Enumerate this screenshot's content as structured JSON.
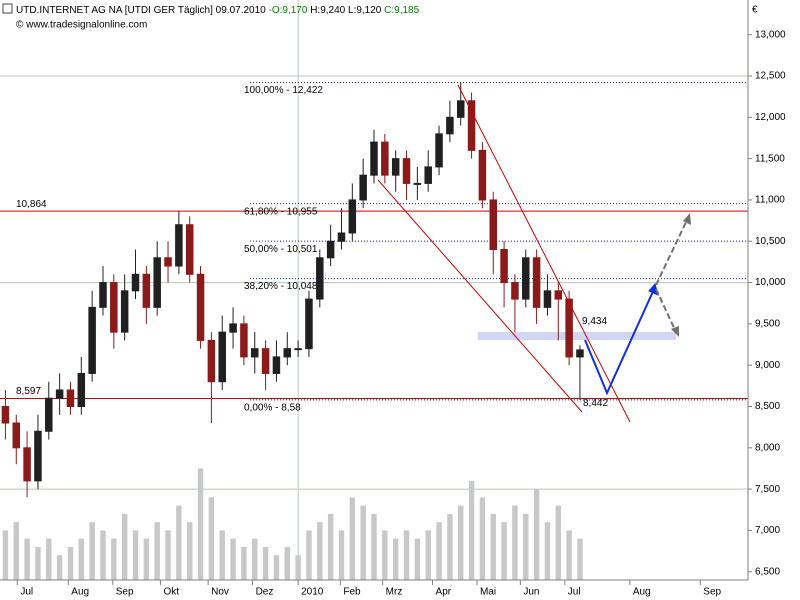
{
  "chart_data": {
    "type": "candlestick",
    "title": "UTD.INTERNET AG NA [UTDI GER  Täglich] 09.07.2010",
    "quote": [
      "-O:9,170",
      "H:9,240 L:9,120",
      "C:9,185"
    ],
    "subtitle": "© www.tradesignalonline.com",
    "currency": "€",
    "categories": [
      null,
      null,
      null,
      null,
      null,
      null,
      null,
      null,
      null,
      null,
      null,
      null,
      null,
      null,
      null,
      null,
      null,
      null,
      null,
      null,
      null,
      null,
      null,
      null,
      null,
      null,
      null,
      null,
      null,
      null,
      null,
      null,
      null,
      null,
      null,
      null,
      null,
      null,
      null,
      null,
      null,
      null,
      null,
      null,
      null,
      null,
      null,
      null,
      null,
      null,
      null,
      null,
      null,
      null
    ],
    "open": [
      8.5,
      8.3,
      8.0,
      7.6,
      8.2,
      8.6,
      8.7,
      8.5,
      8.9,
      9.7,
      10.0,
      9.4,
      9.9,
      10.1,
      9.7,
      10.3,
      10.2,
      10.7,
      10.1,
      9.3,
      8.8,
      9.4,
      9.5,
      9.1,
      9.2,
      8.9,
      9.1,
      9.2,
      9.2,
      9.8,
      10.3,
      10.5,
      10.6,
      11.0,
      11.3,
      11.7,
      11.3,
      11.5,
      11.2,
      11.2,
      11.4,
      11.8,
      12.0,
      12.2,
      11.6,
      11.0,
      10.4,
      10.0,
      9.8,
      10.3,
      9.7,
      9.9,
      9.8,
      9.1
    ],
    "high": [
      8.7,
      8.4,
      8.2,
      8.4,
      8.8,
      8.9,
      8.8,
      9.1,
      9.9,
      10.2,
      10.1,
      10.1,
      10.4,
      10.2,
      10.5,
      10.5,
      10.86,
      10.8,
      10.2,
      9.4,
      9.6,
      9.7,
      9.6,
      9.4,
      9.3,
      9.3,
      9.4,
      9.3,
      9.9,
      10.4,
      10.7,
      10.9,
      11.2,
      11.5,
      11.85,
      11.8,
      11.6,
      11.6,
      11.4,
      11.6,
      11.9,
      12.2,
      12.42,
      12.3,
      11.7,
      11.1,
      10.5,
      10.1,
      10.4,
      10.4,
      10.1,
      10.0,
      9.9,
      9.24
    ],
    "low": [
      8.1,
      7.8,
      7.4,
      7.5,
      8.1,
      8.4,
      8.4,
      8.4,
      8.8,
      9.6,
      9.2,
      9.3,
      9.8,
      9.5,
      9.6,
      10.0,
      10.1,
      10.0,
      9.2,
      8.3,
      8.7,
      9.2,
      9.0,
      8.9,
      8.7,
      8.8,
      9.0,
      9.1,
      9.1,
      9.7,
      10.2,
      10.4,
      10.5,
      10.9,
      11.2,
      11.2,
      11.1,
      11.0,
      11.0,
      11.1,
      11.3,
      11.7,
      11.9,
      11.5,
      10.9,
      10.1,
      9.7,
      9.4,
      9.7,
      9.5,
      9.6,
      9.3,
      9.0,
      8.58
    ],
    "close": [
      8.3,
      8.0,
      7.6,
      8.2,
      8.6,
      8.7,
      8.5,
      8.9,
      9.7,
      10.0,
      9.4,
      9.9,
      10.1,
      9.7,
      10.3,
      10.2,
      10.7,
      10.1,
      9.3,
      8.8,
      9.4,
      9.5,
      9.1,
      9.2,
      8.9,
      9.1,
      9.2,
      9.2,
      9.8,
      10.3,
      10.5,
      10.6,
      11.0,
      11.3,
      11.7,
      11.3,
      11.5,
      11.2,
      11.2,
      11.4,
      11.8,
      12.0,
      12.2,
      11.6,
      11.0,
      10.4,
      10.0,
      9.8,
      10.3,
      9.7,
      9.9,
      9.8,
      9.1,
      9.185
    ],
    "volume": [
      7.0,
      7.1,
      6.9,
      6.8,
      6.9,
      6.7,
      6.8,
      6.9,
      7.1,
      7.0,
      6.9,
      7.2,
      7.0,
      6.9,
      7.1,
      7.0,
      7.3,
      7.1,
      7.75,
      7.4,
      7.0,
      6.9,
      6.8,
      6.9,
      6.8,
      6.7,
      6.8,
      6.7,
      7.0,
      7.1,
      7.2,
      7.0,
      7.4,
      7.3,
      7.2,
      7.0,
      6.9,
      7.0,
      6.9,
      7.0,
      7.1,
      7.2,
      7.3,
      7.6,
      7.4,
      7.2,
      7.1,
      7.3,
      7.2,
      7.5,
      7.1,
      7.3,
      7.0,
      6.9
    ],
    "up_color": "#202020",
    "down_color": "#8b1a1a",
    "volume_color": "#c8c8c8",
    "xlim": [
      0,
      69
    ],
    "xticks": [
      {
        "value": 1.6,
        "label": "Jul"
      },
      {
        "value": 6.3,
        "label": "Aug"
      },
      {
        "value": 10.4,
        "label": "Sep"
      },
      {
        "value": 14.8,
        "label": "Okt"
      },
      {
        "value": 19.2,
        "label": "Nov"
      },
      {
        "value": 23.3,
        "label": "Dez"
      },
      {
        "value": 27.5,
        "label": "2010"
      },
      {
        "value": 31.4,
        "label": "Feb"
      },
      {
        "value": 35.3,
        "label": "Mrz"
      },
      {
        "value": 39.9,
        "label": "Apr"
      },
      {
        "value": 44.0,
        "label": "Mai"
      },
      {
        "value": 48.0,
        "label": "Jun"
      },
      {
        "value": 52.1,
        "label": "Jul"
      },
      {
        "value": 58.1,
        "label": "Aug"
      },
      {
        "value": 64.6,
        "label": "Sep"
      }
    ],
    "ylim": [
      6.4,
      13.42
    ],
    "yticks": [
      {
        "value": 6.5,
        "label": "6,500"
      },
      {
        "value": 7,
        "label": "7,000"
      },
      {
        "value": 7.5,
        "label": "7,500"
      },
      {
        "value": 8,
        "label": "8,000"
      },
      {
        "value": 8.5,
        "label": "8,500"
      },
      {
        "value": 9,
        "label": "9,000"
      },
      {
        "value": 9.5,
        "label": "9,500"
      },
      {
        "value": 10,
        "label": "10,000"
      },
      {
        "value": 10.5,
        "label": "10,500"
      },
      {
        "value": 11,
        "label": "11,000"
      },
      {
        "value": 11.5,
        "label": "11,500"
      },
      {
        "value": 12,
        "label": "12,000"
      },
      {
        "value": 12.5,
        "label": "12,500"
      },
      {
        "value": 13,
        "label": "13,000"
      }
    ],
    "ygrid": [
      7.5,
      10,
      12.5
    ],
    "xgrid": [
      27.5
    ],
    "levels": [
      {
        "value": 10.864,
        "label": "10,864",
        "color": "#d00000"
      },
      {
        "value": 8.597,
        "label": "8,597",
        "color": "#d00000"
      }
    ],
    "fibonacci": [
      {
        "value": 12.422,
        "label": "100,00% - 12,422"
      },
      {
        "value": 10.955,
        "label": "61,80% - 10,955"
      },
      {
        "value": 10.501,
        "label": "50,00% - 10,501"
      },
      {
        "value": 10.048,
        "label": "38,20% - 10,048"
      },
      {
        "value": 8.58,
        "label": "0,00% - 8,58"
      }
    ],
    "fib_color": "#2020c0",
    "channel_labels": [
      {
        "value": 9.434,
        "label": "9,434"
      },
      {
        "value": 8.442,
        "label": "8,442"
      }
    ]
  }
}
